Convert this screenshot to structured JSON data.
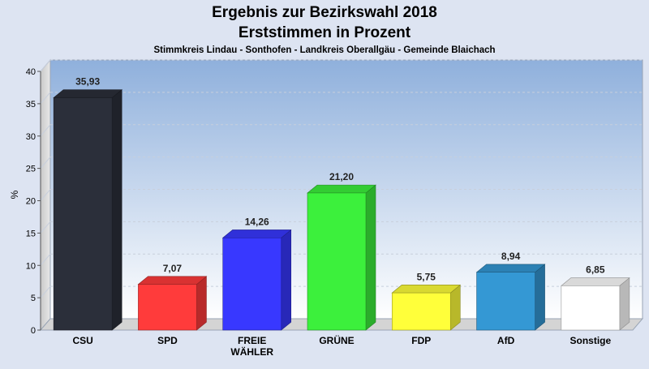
{
  "colors": {
    "page_background": "#dde4f2",
    "plot_top": "#8fb0dc",
    "plot_bottom": "#ffffff"
  },
  "chart_data": {
    "type": "bar",
    "title": "Ergebnis zur Bezirkswahl 2018",
    "subtitle": "Erststimmen in Prozent",
    "caption": "Stimmkreis Lindau - Sonthofen - Landkreis Oberallgäu - Gemeinde Blaichach",
    "ylabel": "%",
    "xlabel": "",
    "ylim": [
      0,
      40
    ],
    "yticks": [
      0,
      5,
      10,
      15,
      20,
      25,
      30,
      35,
      40
    ],
    "grid": true,
    "legend": "none",
    "categories": [
      "CSU",
      "SPD",
      "FREIE WÄHLER",
      "GRÜNE",
      "FDP",
      "AfD",
      "Sonstige"
    ],
    "category_lines": [
      [
        "CSU"
      ],
      [
        "SPD"
      ],
      [
        "FREIE",
        "WÄHLER"
      ],
      [
        "GRÜNE"
      ],
      [
        "FDP"
      ],
      [
        "AfD"
      ],
      [
        "Sonstige"
      ]
    ],
    "values": [
      35.93,
      7.07,
      14.26,
      21.2,
      5.75,
      8.94,
      6.85
    ],
    "value_labels": [
      "35,93",
      "7,07",
      "14,26",
      "21,20",
      "5,75",
      "8,94",
      "6,85"
    ],
    "colors": [
      "#2b2f3a",
      "#ff3b3b",
      "#3838ff",
      "#3cf03c",
      "#ffff3a",
      "#3498d4",
      "#ffffff"
    ]
  }
}
